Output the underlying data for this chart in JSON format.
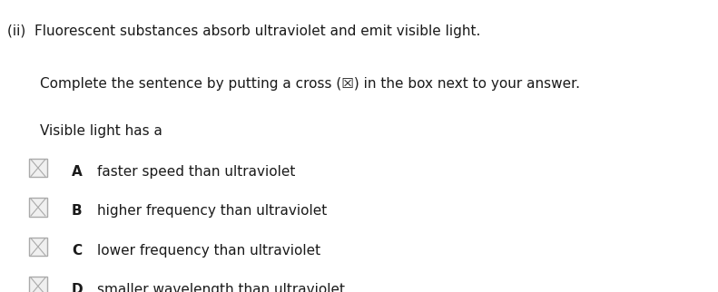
{
  "background_color": "#ffffff",
  "title_line": "(ii)  Fluorescent substances absorb ultraviolet and emit visible light.",
  "instruction": "Complete the sentence by putting a cross (☒) in the box next to your answer.",
  "stem": "Visible light has a",
  "options": [
    {
      "letter": "A",
      "text": "faster speed than ultraviolet"
    },
    {
      "letter": "B",
      "text": "higher frequency than ultraviolet"
    },
    {
      "letter": "C",
      "text": "lower frequency than ultraviolet"
    },
    {
      "letter": "D",
      "text": "smaller wavelength than ultraviolet"
    }
  ],
  "title_fontsize": 11.0,
  "body_fontsize": 11.0,
  "option_fontsize": 11.0,
  "text_color": "#1a1a1a",
  "box_edge_color": "#aaaaaa",
  "box_face_color": "#f0f0f0",
  "cross_color": "#aaaaaa"
}
